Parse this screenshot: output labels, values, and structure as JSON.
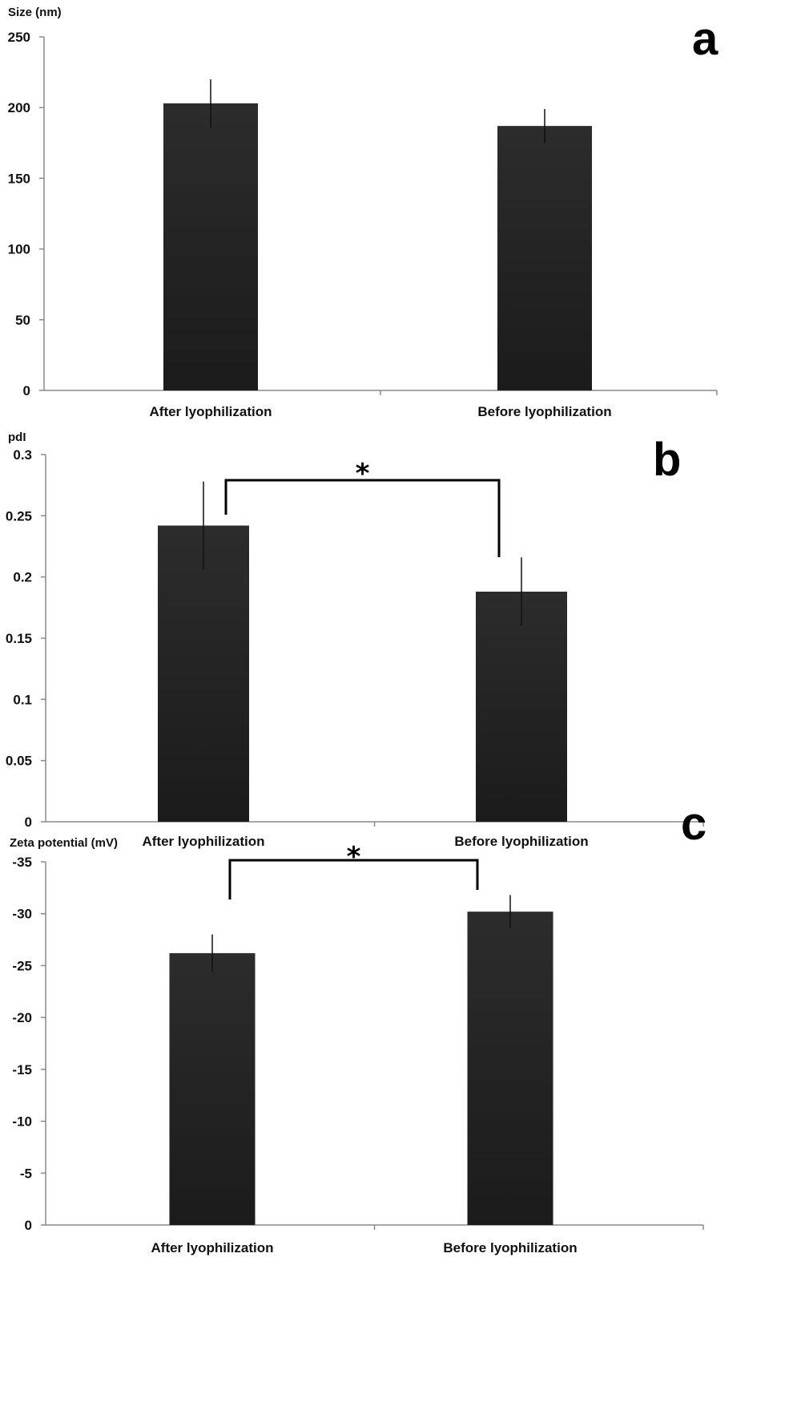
{
  "chart_data": [
    {
      "type": "bar",
      "panel": "a",
      "ylabel": "Size (nm)",
      "categories": [
        "After lyophilization",
        "Before lyophilization"
      ],
      "values": [
        203,
        187
      ],
      "errors": [
        17,
        12
      ],
      "ylim": [
        0,
        250
      ],
      "yticks": [
        "250",
        "200",
        "150",
        "100",
        "50",
        "0"
      ],
      "significance": null
    },
    {
      "type": "bar",
      "panel": "b",
      "ylabel": "pdI",
      "categories": [
        "After lyophilization",
        "Before lyophilization"
      ],
      "values": [
        0.242,
        0.188
      ],
      "errors": [
        0.036,
        0.028
      ],
      "ylim": [
        0,
        0.3
      ],
      "yticks": [
        "0.3",
        "0.25",
        "0.2",
        "0.15",
        "0.1",
        "0.05",
        "0"
      ],
      "significance": "*"
    },
    {
      "type": "bar",
      "panel": "c",
      "ylabel": "Zeta potential (mV)",
      "categories": [
        "After lyophilization",
        "Before lyophilization"
      ],
      "values": [
        -26.2,
        -30.2
      ],
      "errors": [
        1.8,
        1.6
      ],
      "ylim": [
        0,
        -35
      ],
      "yticks": [
        "-35",
        "-30",
        "-25",
        "-20",
        "-15",
        "-10",
        "-5",
        "0"
      ],
      "significance": "*"
    }
  ]
}
